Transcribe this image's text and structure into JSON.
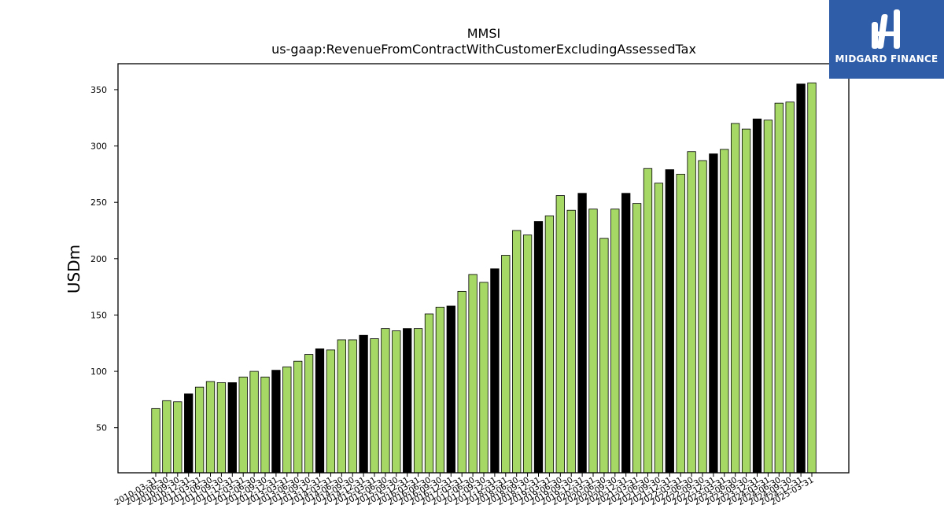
{
  "chart_data": {
    "type": "bar",
    "title": "MMSI",
    "subtitle": "us-gaap:RevenueFromContractWithCustomerExcludingAssessedTax",
    "ylabel": "USDm",
    "xlabel": "",
    "ylim": [
      10,
      373
    ],
    "yticks": [
      50,
      100,
      150,
      200,
      250,
      300,
      350
    ],
    "grid": false,
    "colors": {
      "quarter": "#a6d865",
      "fiscal_year_end": "#000000",
      "edge": "#000000"
    },
    "categories": [
      "2010-03-31",
      "2010-06-30",
      "2010-09-30",
      "2010-12-31",
      "2011-03-31",
      "2011-06-30",
      "2011-09-30",
      "2011-12-31",
      "2012-03-31",
      "2012-06-30",
      "2012-09-30",
      "2012-12-31",
      "2013-03-31",
      "2013-06-30",
      "2013-09-30",
      "2013-12-31",
      "2014-03-31",
      "2014-06-30",
      "2014-09-30",
      "2014-12-31",
      "2015-03-31",
      "2015-06-30",
      "2015-09-30",
      "2015-12-31",
      "2016-03-31",
      "2016-06-30",
      "2016-09-30",
      "2016-12-31",
      "2017-03-31",
      "2017-06-30",
      "2017-09-30",
      "2017-12-31",
      "2018-03-31",
      "2018-06-30",
      "2018-09-30",
      "2018-12-31",
      "2019-03-31",
      "2019-06-30",
      "2019-09-30",
      "2019-12-31",
      "2020-03-31",
      "2020-06-30",
      "2020-09-30",
      "2020-12-31",
      "2021-03-31",
      "2021-06-30",
      "2021-09-30",
      "2021-12-31",
      "2022-03-31",
      "2022-06-30",
      "2022-09-30",
      "2022-12-31",
      "2023-03-31",
      "2023-06-30",
      "2023-09-30",
      "2023-12-31",
      "2024-03-31",
      "2024-06-30",
      "2024-09-30",
      "2024-12-31",
      "2025-03-31"
    ],
    "values": [
      67,
      74,
      73,
      80,
      86,
      91,
      90,
      90,
      95,
      100,
      95,
      101,
      104,
      109,
      115,
      120,
      119,
      128,
      128,
      132,
      129,
      138,
      136,
      138,
      138,
      151,
      157,
      158,
      171,
      186,
      179,
      191,
      203,
      225,
      221,
      233,
      238,
      256,
      243,
      258,
      244,
      218,
      244,
      258,
      249,
      280,
      267,
      279,
      275,
      295,
      287,
      293,
      297,
      320,
      315,
      324,
      323,
      338,
      339,
      355,
      356
    ],
    "fiscal_year_end": [
      false,
      false,
      false,
      true,
      false,
      false,
      false,
      true,
      false,
      false,
      false,
      true,
      false,
      false,
      false,
      true,
      false,
      false,
      false,
      true,
      false,
      false,
      false,
      true,
      false,
      false,
      false,
      true,
      false,
      false,
      false,
      true,
      false,
      false,
      false,
      true,
      false,
      false,
      false,
      true,
      false,
      false,
      false,
      true,
      false,
      false,
      false,
      true,
      false,
      false,
      false,
      true,
      false,
      false,
      false,
      true,
      false,
      false,
      false,
      true,
      false
    ]
  },
  "logo": {
    "text": "MIDGARD FINANCE"
  }
}
